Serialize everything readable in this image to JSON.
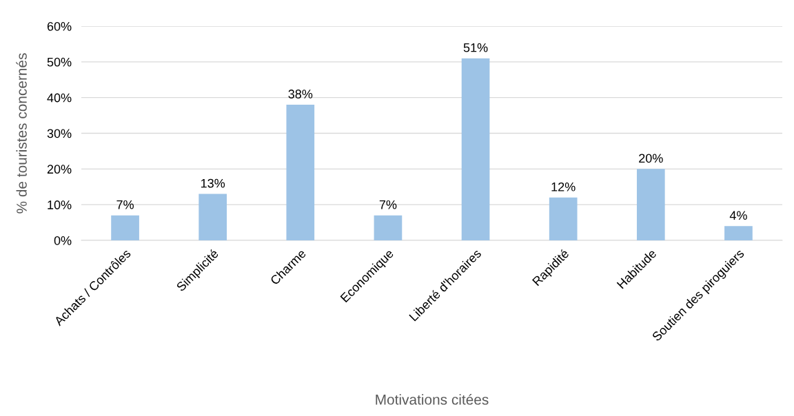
{
  "chart_data": {
    "type": "bar",
    "xlabel": "Motivations citées",
    "ylabel": "% de touristes concernés",
    "categories": [
      "Achats / Contrôles",
      "Simplicité",
      "Charme",
      "Economique",
      "Liberté d'horaires",
      "Rapidité",
      "Habitude",
      "Soutien des piroguiers"
    ],
    "values": [
      7,
      13,
      38,
      7,
      51,
      12,
      20,
      4
    ],
    "value_labels": [
      "7%",
      "13%",
      "38%",
      "7%",
      "51%",
      "12%",
      "20%",
      "4%"
    ],
    "color": "#9dc3e6",
    "ylim": [
      0,
      60
    ],
    "yticks": [
      {
        "value": 0,
        "label": "0%"
      },
      {
        "value": 10,
        "label": "10%"
      },
      {
        "value": 20,
        "label": "20%"
      },
      {
        "value": 30,
        "label": "30%"
      },
      {
        "value": 40,
        "label": "40%"
      },
      {
        "value": 50,
        "label": "50%"
      },
      {
        "value": 60,
        "label": "60%"
      }
    ],
    "grid": "y",
    "legend": false
  }
}
